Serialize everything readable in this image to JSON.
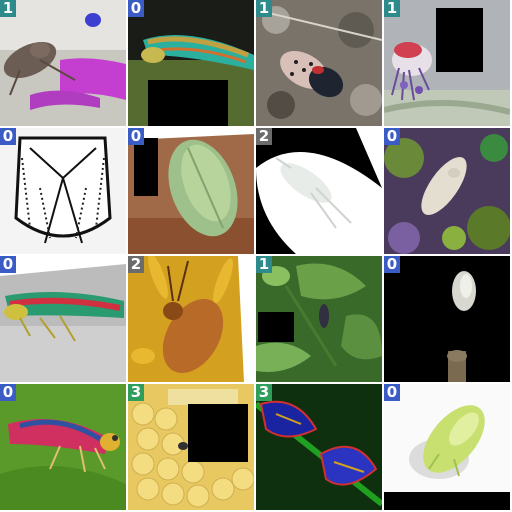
{
  "tiles": [
    {
      "label": "1",
      "label_color": "#2e8b8b"
    },
    {
      "label": "0",
      "label_color": "#3b5cc4"
    },
    {
      "label": "1",
      "label_color": "#2e8b8b"
    },
    {
      "label": "1",
      "label_color": "#2e8b8b"
    },
    {
      "label": "0",
      "label_color": "#3b5cc4"
    },
    {
      "label": "0",
      "label_color": "#3b5cc4"
    },
    {
      "label": "2",
      "label_color": "#6b6b6b"
    },
    {
      "label": "0",
      "label_color": "#3b5cc4"
    },
    {
      "label": "0",
      "label_color": "#3b5cc4"
    },
    {
      "label": "2",
      "label_color": "#6b6b6b"
    },
    {
      "label": "1",
      "label_color": "#2e8b8b"
    },
    {
      "label": "0",
      "label_color": "#3b5cc4"
    },
    {
      "label": "0",
      "label_color": "#3b5cc4"
    },
    {
      "label": "3",
      "label_color": "#2f9e5a"
    },
    {
      "label": "3",
      "label_color": "#2f9e5a"
    },
    {
      "label": "0",
      "label_color": "#3b5cc4"
    }
  ]
}
